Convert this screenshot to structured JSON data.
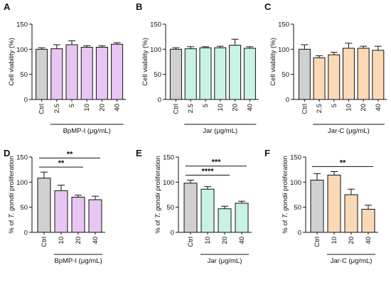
{
  "chart_data": [
    {
      "panel": "A",
      "type": "bar",
      "ylabel": "Cell viability (%)",
      "xlabel": "BpMP-I (μg/mL)",
      "yticks": [
        0,
        50,
        100,
        150
      ],
      "ylim": [
        0,
        150
      ],
      "categories": [
        "Ctrl",
        "2.5",
        "5",
        "10",
        "20",
        "40"
      ],
      "values": [
        100,
        101,
        109,
        104,
        104,
        110
      ],
      "errors": [
        3,
        8,
        8,
        3,
        3,
        3
      ],
      "colors": [
        "#d0d0d0",
        "#e8c5f2",
        "#e8c5f2",
        "#e8c5f2",
        "#e8c5f2",
        "#e8c5f2"
      ],
      "group_from": 1,
      "significance": []
    },
    {
      "panel": "B",
      "type": "bar",
      "ylabel": "Cell viability (%)",
      "xlabel": "Jar (μg/mL)",
      "yticks": [
        0,
        50,
        100,
        150
      ],
      "ylim": [
        0,
        150
      ],
      "categories": [
        "Ctrl",
        "2.5",
        "5",
        "10",
        "20",
        "40"
      ],
      "values": [
        100,
        101,
        103,
        103,
        108,
        102
      ],
      "errors": [
        3,
        4,
        2,
        3,
        12,
        3
      ],
      "colors": [
        "#d0d0d0",
        "#c8f3e2",
        "#c8f3e2",
        "#c8f3e2",
        "#c8f3e2",
        "#c8f3e2"
      ],
      "group_from": 1,
      "significance": []
    },
    {
      "panel": "C",
      "type": "bar",
      "ylabel": "Cell viability (%)",
      "xlabel": "Jar-C (μg/mL)",
      "yticks": [
        0,
        50,
        100,
        150
      ],
      "ylim": [
        0,
        150
      ],
      "categories": [
        "Ctrl",
        "2.5",
        "5",
        "10",
        "20",
        "40"
      ],
      "values": [
        100,
        83,
        89,
        102,
        102,
        98
      ],
      "errors": [
        9,
        4,
        5,
        10,
        4,
        8
      ],
      "colors": [
        "#d0d0d0",
        "#fcd9b5",
        "#fcd9b5",
        "#fcd9b5",
        "#fcd9b5",
        "#fcd9b5"
      ],
      "group_from": 1,
      "significance": []
    },
    {
      "panel": "D",
      "type": "bar",
      "ylabel": "% of T. gondii proliferation",
      "xlabel": "BpMP-I (μg/mL)",
      "yticks": [
        0,
        50,
        100,
        150
      ],
      "ylim": [
        0,
        150
      ],
      "categories": [
        "Ctrl",
        "10",
        "20",
        "40"
      ],
      "values": [
        108,
        83,
        70,
        65
      ],
      "errors": [
        12,
        11,
        4,
        7
      ],
      "colors": [
        "#d0d0d0",
        "#e8c5f2",
        "#e8c5f2",
        "#e8c5f2"
      ],
      "group_from": 1,
      "significance": [
        {
          "from": 0,
          "to": 2,
          "label": "**"
        },
        {
          "from": 0,
          "to": 3,
          "label": "**"
        }
      ]
    },
    {
      "panel": "E",
      "type": "bar",
      "ylabel": "% of T. gondii proliferation",
      "xlabel": "Jar (μg/mL)",
      "yticks": [
        0,
        50,
        100,
        150
      ],
      "ylim": [
        0,
        150
      ],
      "categories": [
        "Ctrl",
        "10",
        "20",
        "40"
      ],
      "values": [
        98,
        86,
        47,
        58
      ],
      "errors": [
        6,
        5,
        5,
        4
      ],
      "colors": [
        "#d0d0d0",
        "#c8f3e2",
        "#c8f3e2",
        "#c8f3e2"
      ],
      "group_from": 1,
      "significance": [
        {
          "from": 0,
          "to": 2,
          "label": "****"
        },
        {
          "from": 0,
          "to": 3,
          "label": "***"
        }
      ]
    },
    {
      "panel": "F",
      "type": "bar",
      "ylabel": "% of T. gondii proliferation",
      "xlabel": "Jar-C (μg/mL)",
      "yticks": [
        0,
        50,
        100,
        150
      ],
      "ylim": [
        0,
        150
      ],
      "categories": [
        "Ctrl",
        "10",
        "20",
        "40"
      ],
      "values": [
        104,
        114,
        75,
        46
      ],
      "errors": [
        13,
        7,
        11,
        8
      ],
      "colors": [
        "#d0d0d0",
        "#fcd9b5",
        "#fcd9b5",
        "#fcd9b5"
      ],
      "group_from": 1,
      "significance": [
        {
          "from": 0,
          "to": 3,
          "label": "**"
        }
      ]
    }
  ]
}
